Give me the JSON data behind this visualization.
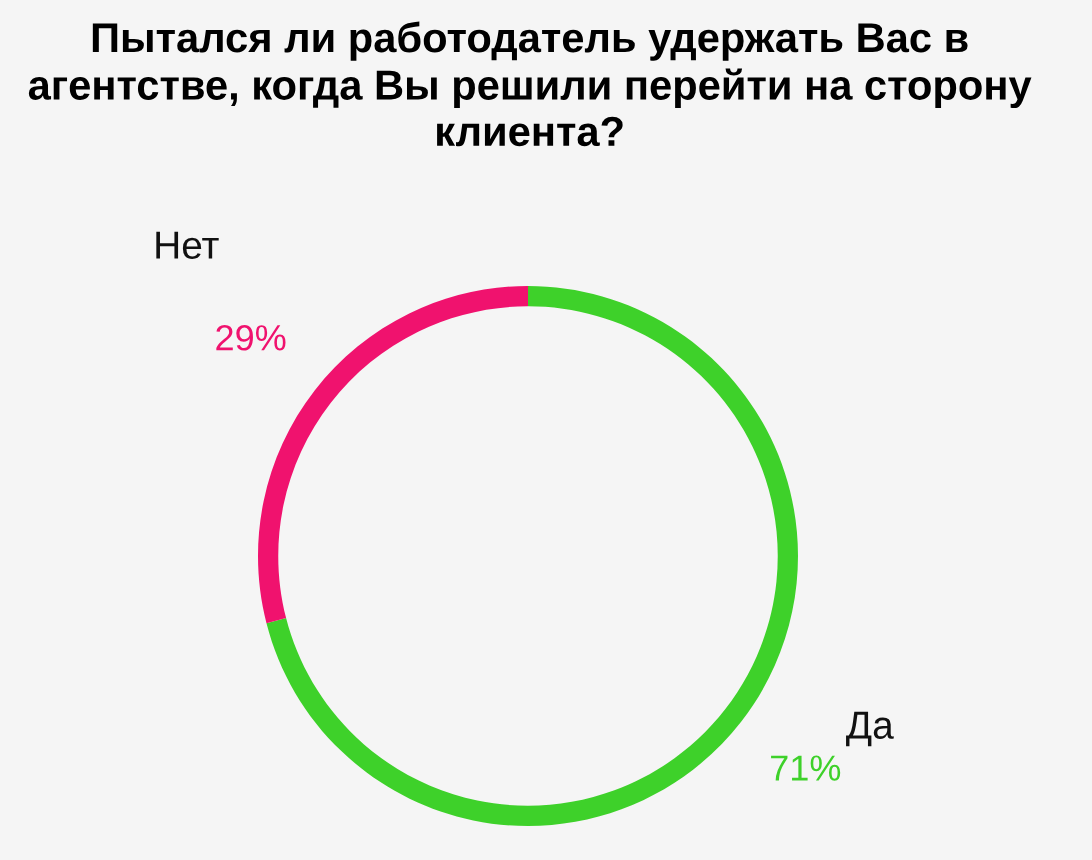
{
  "chart_data": {
    "type": "donut",
    "title": "Пытался ли работодатель удержать Вас в агентстве, когда Вы решили перейти на сторону клиента?",
    "categories": [
      "Да",
      "Нет"
    ],
    "values": [
      71,
      29
    ],
    "colors": [
      "#3ed12a",
      "#f0126e"
    ],
    "value_labels": [
      "71%",
      "29%"
    ]
  }
}
